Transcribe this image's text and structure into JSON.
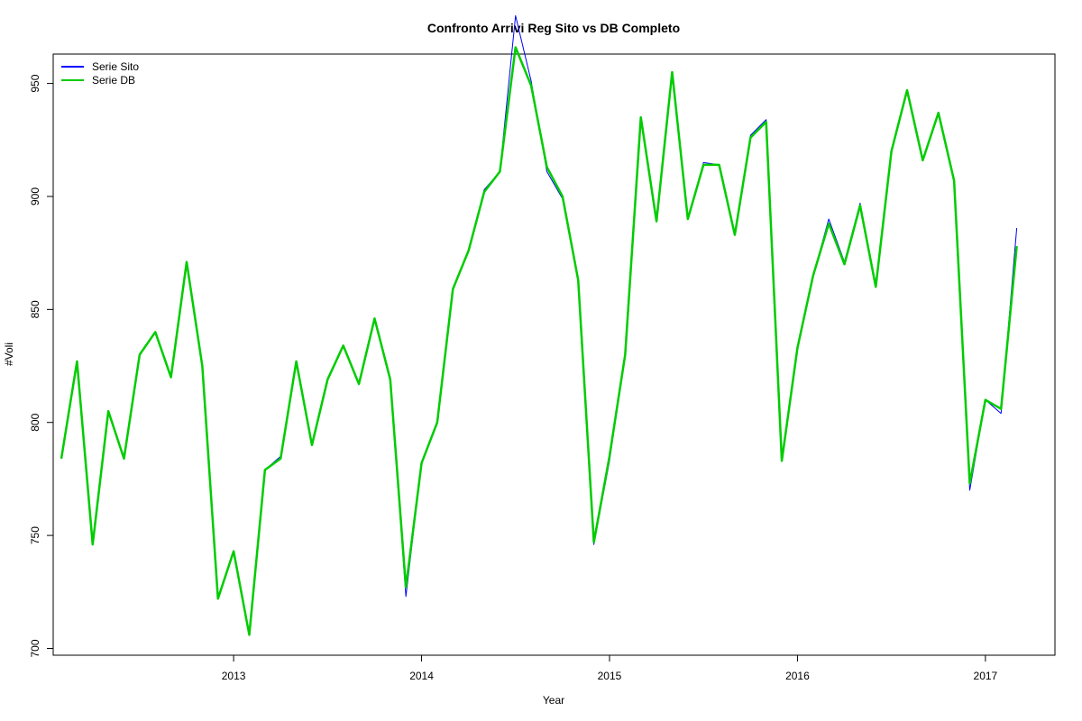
{
  "chart_data": {
    "type": "line",
    "title": "Confronto Arrivi Reg Sito vs DB Completo",
    "xlabel": "Year",
    "ylabel": "#Voli",
    "xlim": [
      2012.04,
      2017.37
    ],
    "ylim": [
      697,
      963
    ],
    "x_ticks": [
      2013,
      2014,
      2015,
      2016,
      2017
    ],
    "y_ticks": [
      700,
      750,
      800,
      850,
      900,
      950
    ],
    "legend_position": "top-left",
    "x_start": 2012.0833,
    "x_step": 0.0833333,
    "series": [
      {
        "name": "Serie Sito",
        "color": "#0000ff",
        "line_width": 1,
        "values": [
          784,
          827,
          746,
          805,
          784,
          830,
          840,
          820,
          871,
          825,
          722,
          743,
          706,
          779,
          785,
          827,
          791,
          819,
          834,
          817,
          846,
          819,
          723,
          782,
          800,
          859,
          876,
          903,
          911,
          980,
          951,
          911,
          899,
          863,
          746,
          783,
          830,
          935,
          889,
          955,
          890,
          915,
          914,
          883,
          927,
          934,
          783,
          833,
          865,
          890,
          871,
          897,
          860,
          920,
          947,
          916,
          937,
          907,
          770,
          810,
          804,
          886
        ]
      },
      {
        "name": "Serie DB",
        "color": "#00cc00",
        "line_width": 2.5,
        "values": [
          784,
          827,
          746,
          805,
          784,
          830,
          840,
          820,
          871,
          825,
          722,
          743,
          706,
          779,
          784,
          827,
          790,
          819,
          834,
          817,
          846,
          819,
          727,
          782,
          800,
          859,
          876,
          902,
          911,
          966,
          949,
          913,
          900,
          863,
          747,
          785,
          830,
          935,
          889,
          955,
          890,
          914,
          914,
          883,
          926,
          933,
          783,
          833,
          865,
          888,
          870,
          896,
          860,
          920,
          947,
          916,
          937,
          907,
          773,
          810,
          806,
          878
        ]
      }
    ]
  }
}
